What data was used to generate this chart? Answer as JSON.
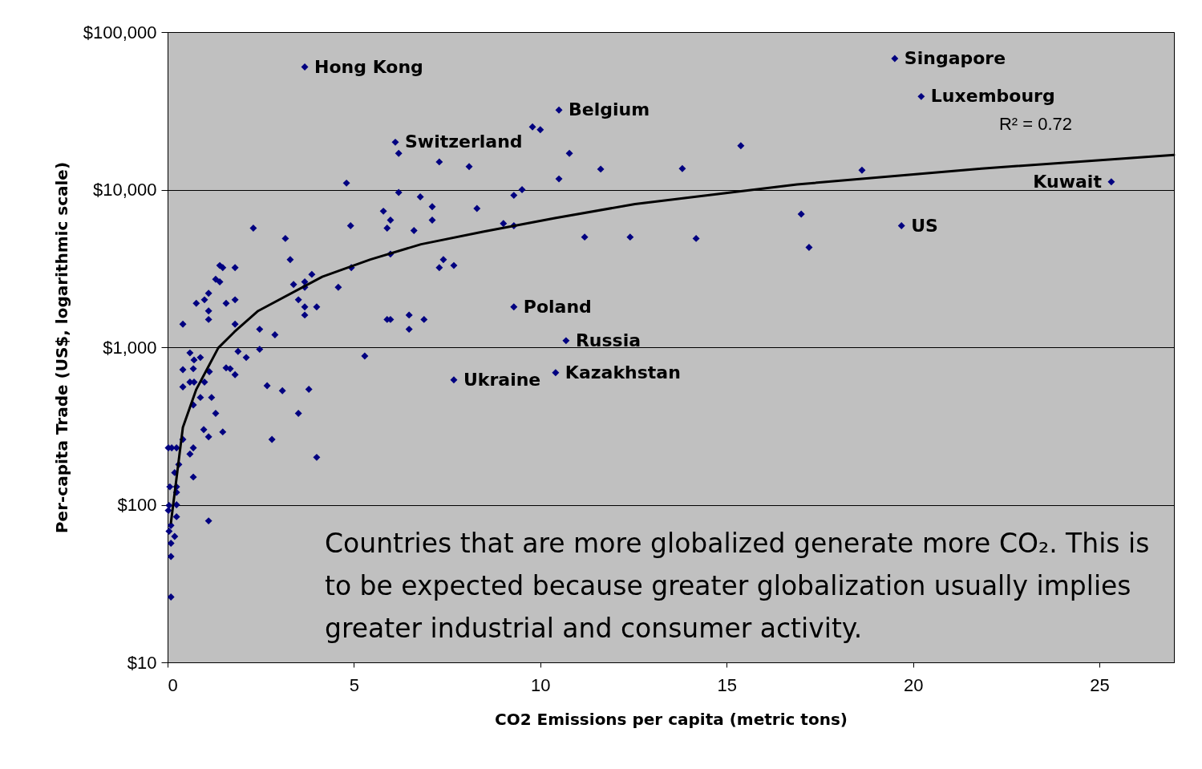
{
  "chart_data": {
    "type": "scatter",
    "xlabel": "CO2 Emissions per capita (metric tons)",
    "ylabel": "Per-capita Trade (US$, logarithmic scale)",
    "xlim": [
      0,
      27
    ],
    "xticks": [
      0,
      5,
      10,
      15,
      20,
      25
    ],
    "ylim": [
      10,
      100000
    ],
    "yticks": [
      {
        "value": 10,
        "label": "$10"
      },
      {
        "value": 100,
        "label": "$100"
      },
      {
        "value": 1000,
        "label": "$1,000"
      },
      {
        "value": 10000,
        "label": "$10,000"
      },
      {
        "value": 100000,
        "label": "$100,000"
      }
    ],
    "log": "y",
    "grid": "y",
    "series": [
      {
        "marker": "diamond",
        "color": "#000080",
        "x": [
          3.68,
          19.51,
          20.22,
          10.5,
          6.11,
          6.2,
          7.29,
          8.09,
          9.79,
          10.0,
          10.78,
          11.62,
          13.81,
          15.38,
          18.63,
          25.32,
          10.5,
          4.8,
          6.2,
          6.78,
          7.1,
          9.51,
          9.29,
          8.3,
          5.79,
          5.98,
          7.1,
          5.89,
          6.61,
          4.91,
          9.01,
          9.29,
          2.3,
          3.16,
          11.19,
          12.41,
          14.18,
          17.0,
          17.21,
          19.69,
          3.29,
          4.93,
          5.98,
          7.4,
          7.29,
          7.68,
          3.87,
          3.38,
          3.68,
          3.68,
          4.58,
          3.51,
          3.68,
          4.0,
          3.68,
          2.47,
          2.88,
          2.47,
          5.89,
          5.98,
          6.48,
          6.88,
          6.48,
          9.29,
          10.69,
          10.41,
          5.29,
          7.68,
          2.67,
          3.08,
          3.79,
          3.51,
          2.8,
          4.0,
          1.4,
          1.48,
          1.81,
          1.29,
          1.4,
          1.1,
          0.99,
          0.77,
          1.57,
          1.81,
          1.1,
          1.1,
          1.81,
          0.41,
          1.89,
          2.11,
          0.6,
          0.71,
          0.88,
          0.41,
          0.69,
          1.12,
          1.57,
          1.68,
          1.81,
          0.41,
          0.6,
          0.71,
          0.99,
          0.88,
          0.69,
          1.18,
          1.29,
          0.97,
          1.1,
          1.48,
          0.11,
          0.24,
          0.02,
          0.41,
          0.69,
          0.6,
          0.3,
          0.19,
          0.69,
          0.06,
          0.24,
          0.24,
          0.04,
          0.24,
          0.02,
          0.24,
          1.1,
          0.09,
          0.04,
          0.19,
          0.09,
          0.09,
          0.09
        ],
        "values": [
          60000,
          68000,
          39000,
          32000,
          20000,
          17000,
          15000,
          14000,
          25000,
          24000,
          17000,
          13500,
          13600,
          19000,
          13300,
          11200,
          11700,
          11000,
          9600,
          9000,
          7800,
          10000,
          9200,
          7600,
          7300,
          6400,
          6400,
          5700,
          5500,
          5900,
          6100,
          5900,
          5700,
          4900,
          5000,
          5000,
          4900,
          7000,
          4300,
          5900,
          3600,
          3200,
          3900,
          3600,
          3200,
          3300,
          2900,
          2500,
          2600,
          2400,
          2400,
          2000,
          1800,
          1800,
          1600,
          1300,
          1200,
          970,
          1500,
          1500,
          1600,
          1500,
          1300,
          1800,
          1100,
          690,
          880,
          620,
          570,
          530,
          540,
          380,
          260,
          200,
          3300,
          3200,
          3200,
          2700,
          2600,
          2200,
          2000,
          1900,
          1900,
          2000,
          1700,
          1500,
          1400,
          1400,
          940,
          860,
          920,
          830,
          860,
          720,
          730,
          700,
          740,
          730,
          670,
          560,
          600,
          600,
          600,
          480,
          430,
          480,
          380,
          300,
          270,
          290,
          230,
          230,
          230,
          260,
          230,
          210,
          180,
          160,
          150,
          130,
          130,
          120,
          99,
          100,
          92,
          84,
          79,
          74,
          68,
          63,
          57,
          47,
          26
        ]
      },
      {
        "type": "line",
        "color": "#000000",
        "x": [
          0.09,
          0.41,
          0.77,
          1.36,
          1.79,
          2.43,
          4.15,
          5.44,
          6.8,
          8.46,
          10.39,
          12.54,
          16.89,
          21.84,
          27
        ],
        "values": [
          77,
          310,
          540,
          990,
          1250,
          1700,
          2800,
          3600,
          4500,
          5400,
          6600,
          8100,
          10800,
          13600,
          16600
        ]
      }
    ],
    "annotations": [
      {
        "text": "Hong Kong",
        "x": 3.68,
        "y": 60000
      },
      {
        "text": "Singapore",
        "x": 19.51,
        "y": 68000
      },
      {
        "text": "Luxembourg",
        "x": 20.22,
        "y": 39000
      },
      {
        "text": "Belgium",
        "x": 10.5,
        "y": 32000
      },
      {
        "text": "Switzerland",
        "x": 6.11,
        "y": 20000
      },
      {
        "text": "Kuwait",
        "x": 25.32,
        "y": 11200
      },
      {
        "text": "US",
        "x": 19.69,
        "y": 5900
      },
      {
        "text": "Poland",
        "x": 9.29,
        "y": 1800
      },
      {
        "text": "Russia",
        "x": 10.69,
        "y": 1100
      },
      {
        "text": "Kazakhstan",
        "x": 10.41,
        "y": 690
      },
      {
        "text": "Ukraine",
        "x": 7.68,
        "y": 620
      },
      "R² = 0.72",
      "Countries that are more globalized generate more CO₂. This is to be expected because greater globalization usually implies greater industrial and consumer activity."
    ]
  }
}
